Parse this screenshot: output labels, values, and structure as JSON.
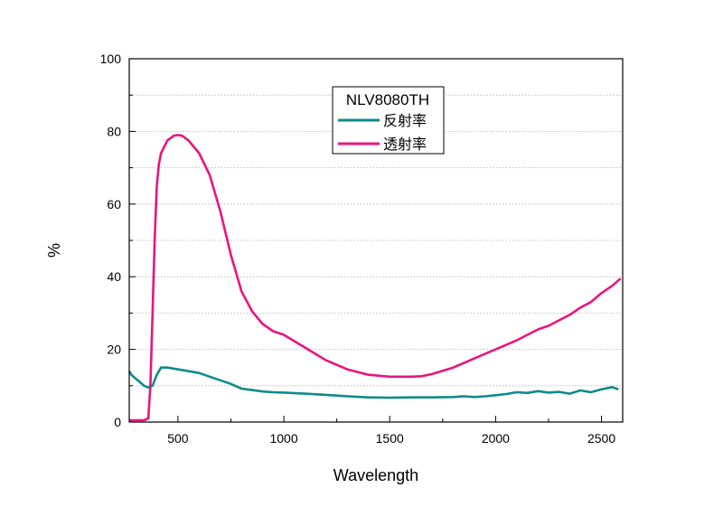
{
  "chart_data": {
    "type": "line",
    "xlabel": "Wavelength",
    "ylabel": "%",
    "xlim": [
      270,
      2600
    ],
    "ylim": [
      0,
      100
    ],
    "x_ticks": [
      500,
      1000,
      1500,
      2000,
      2500
    ],
    "y_ticks": [
      0,
      20,
      40,
      60,
      80,
      100
    ],
    "grid": "horizontal dotted",
    "legend": {
      "title": "NLV8080TH",
      "placement": "top-center"
    },
    "series": [
      {
        "name": "反射率",
        "color": "#0f8a8a",
        "x": [
          270,
          280,
          300,
          320,
          340,
          360,
          380,
          400,
          420,
          450,
          500,
          550,
          600,
          650,
          700,
          750,
          800,
          850,
          900,
          950,
          1000,
          1100,
          1200,
          1300,
          1400,
          1500,
          1600,
          1700,
          1800,
          1850,
          1900,
          1950,
          2000,
          2050,
          2100,
          2150,
          2200,
          2250,
          2300,
          2350,
          2400,
          2450,
          2500,
          2550,
          2580
        ],
        "y": [
          14,
          13,
          12,
          11,
          10,
          9.5,
          10,
          13,
          15,
          15,
          14.5,
          14,
          13.5,
          12.5,
          11.5,
          10.5,
          9.2,
          8.8,
          8.4,
          8.2,
          8.1,
          7.8,
          7.5,
          7.1,
          6.8,
          6.7,
          6.8,
          6.8,
          6.9,
          7.1,
          6.9,
          7.1,
          7.4,
          7.7,
          8.2,
          8.0,
          8.5,
          8.1,
          8.3,
          7.8,
          8.7,
          8.2,
          9.0,
          9.6,
          9.0
        ]
      },
      {
        "name": "透射率",
        "color": "#e8157f",
        "x": [
          270,
          300,
          340,
          360,
          370,
          380,
          390,
          400,
          410,
          420,
          450,
          480,
          500,
          520,
          550,
          600,
          650,
          700,
          750,
          800,
          850,
          900,
          950,
          1000,
          1100,
          1200,
          1300,
          1400,
          1500,
          1600,
          1650,
          1700,
          1800,
          1900,
          2000,
          2100,
          2150,
          2200,
          2250,
          2300,
          2350,
          2400,
          2450,
          2500,
          2550,
          2590
        ],
        "y": [
          0.5,
          0.5,
          0.5,
          1,
          10,
          30,
          50,
          65,
          71,
          74,
          77.5,
          78.8,
          79,
          78.8,
          77.5,
          74,
          68,
          58,
          46,
          36,
          30.5,
          27,
          25,
          24,
          20.5,
          17,
          14.5,
          13,
          12.5,
          12.5,
          12.6,
          13.2,
          15,
          17.5,
          20,
          22.5,
          24,
          25.5,
          26.5,
          28,
          29.5,
          31.5,
          33,
          35.5,
          37.5,
          39.5
        ]
      }
    ]
  }
}
